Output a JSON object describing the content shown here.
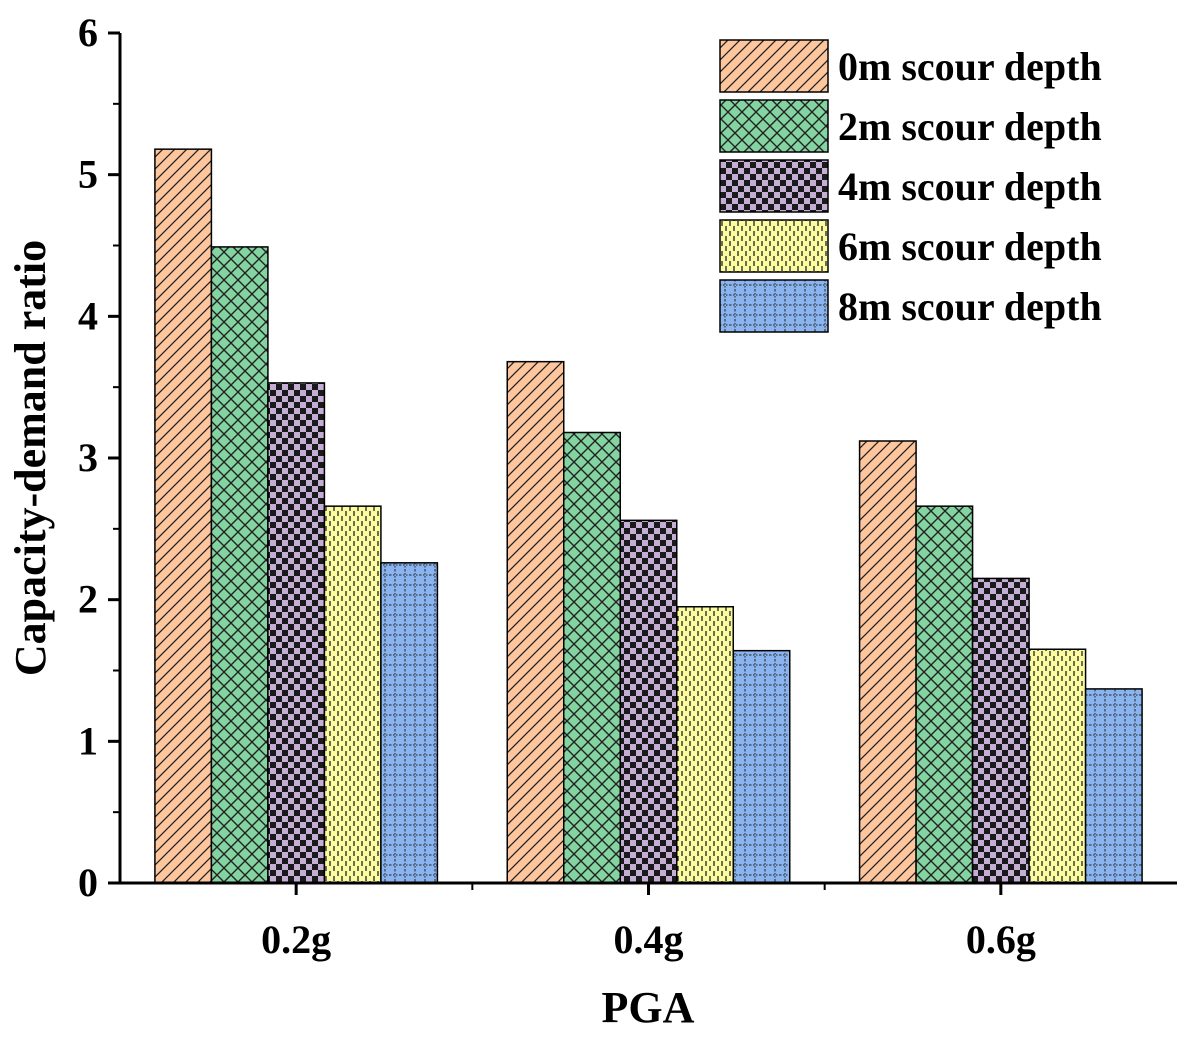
{
  "chart_data": {
    "type": "bar",
    "title": "",
    "xlabel": "PGA",
    "ylabel": "Capacity-demand ratio",
    "categories": [
      "0.2g",
      "0.4g",
      "0.6g"
    ],
    "ylim": [
      0,
      6
    ],
    "yticks": [
      "0",
      "1",
      "2",
      "3",
      "4",
      "5",
      "6"
    ],
    "legend_position": "top-right",
    "grid": false,
    "series": [
      {
        "name": "0m scour depth",
        "values": [
          5.18,
          3.68,
          3.12
        ],
        "color": "#fdc69d",
        "pattern": "diagonal-hatch"
      },
      {
        "name": "2m scour depth",
        "values": [
          4.49,
          3.18,
          2.66
        ],
        "color": "#84d4a1",
        "pattern": "crosshatch"
      },
      {
        "name": "4m scour depth",
        "values": [
          3.53,
          2.56,
          2.15
        ],
        "color": "#c5aed5",
        "pattern": "checkerboard"
      },
      {
        "name": "6m scour depth",
        "values": [
          2.66,
          1.95,
          1.65
        ],
        "color": "#fbfc9e",
        "pattern": "vertical-dashes"
      },
      {
        "name": "8m scour depth",
        "values": [
          2.26,
          1.64,
          1.37
        ],
        "color": "#8ab4f0",
        "pattern": "grid-dots"
      }
    ]
  }
}
